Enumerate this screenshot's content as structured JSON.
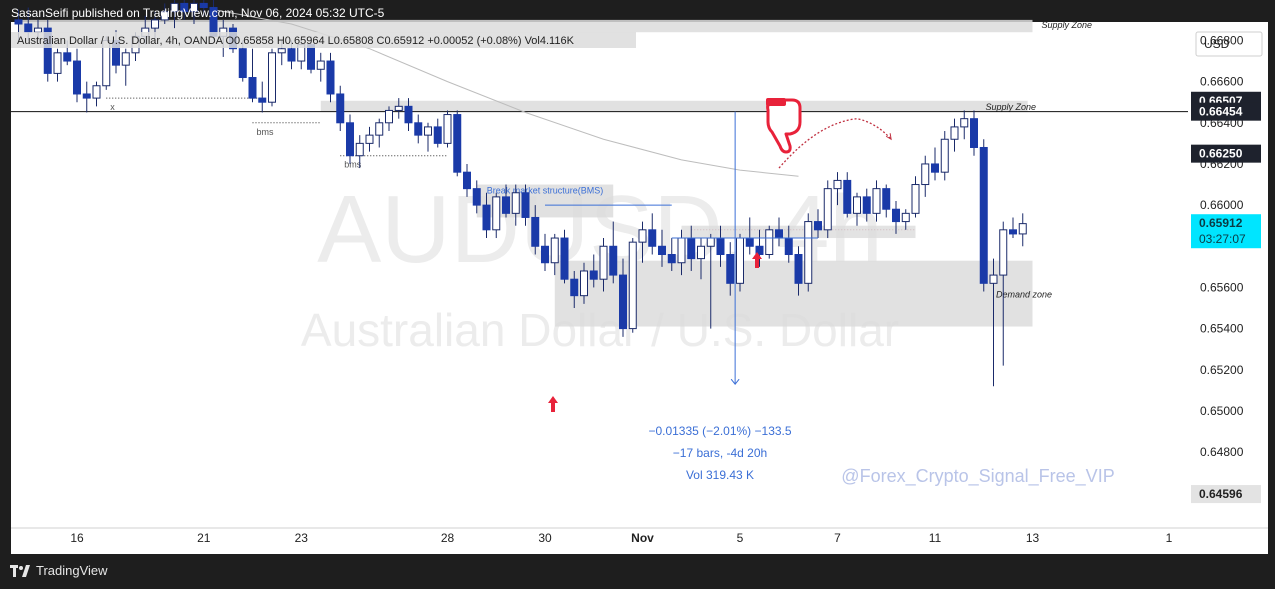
{
  "header": {
    "published": "SasanSeifi published on TradingView.com, Nov 06, 2024 05:32 UTC-5"
  },
  "footer": {
    "brand": "TradingView"
  },
  "colors": {
    "bull_body": "#ffffff",
    "bear_body": "#1a3aa8",
    "wick": "#1a2a6a",
    "zone_fill": "#dcdcdc",
    "measure_blue": "#3b6fd6",
    "arrow_red": "#e8223a",
    "watermark": "#ececec",
    "current_price_bg": "#00e5ff"
  },
  "chart_data": {
    "type": "candlestick",
    "symbol_line": {
      "name": "Australian Dollar / U.S. Dollar, 4h, OANDA",
      "open": "O0.65858",
      "high": "H0.65964",
      "low": "L0.65808",
      "close": "C0.65912",
      "change": "+0.00052 (+0.08%)",
      "volume": "Vol4.116K"
    },
    "watermark": {
      "symbol": "AUDUSD, 4h",
      "name": "Australian Dollar / U.S. Dollar"
    },
    "currency": "USD",
    "ylim": [
      0.6447,
      0.6688
    ],
    "y_ticks": [
      "0.66800",
      "0.66600",
      "0.66400",
      "0.66200",
      "0.66000",
      "0.65600",
      "0.65400",
      "0.65200",
      "0.65000",
      "0.64800"
    ],
    "price_labels": [
      {
        "value": 0.66507,
        "text": "0.66507",
        "style": "dark"
      },
      {
        "value": 0.66454,
        "text": "0.66454",
        "style": "dark"
      },
      {
        "value": 0.6625,
        "text": "0.66250",
        "style": "dark"
      },
      {
        "value": 0.65912,
        "text": "0.65912",
        "sub": "03:27:07",
        "style": "current"
      },
      {
        "value": 0.64596,
        "text": "0.64596",
        "style": "light"
      }
    ],
    "x_ticks": [
      {
        "label": "16",
        "bar": 6
      },
      {
        "label": "21",
        "bar": 19
      },
      {
        "label": "23",
        "bar": 29
      },
      {
        "label": "28",
        "bar": 44
      },
      {
        "label": "30",
        "bar": 54
      },
      {
        "label": "Nov",
        "bar": 64
      },
      {
        "label": "5",
        "bar": 74
      },
      {
        "label": "7",
        "bar": 84
      },
      {
        "label": "11",
        "bar": 94
      },
      {
        "label": "13",
        "bar": 104
      },
      {
        "label": "1",
        "bar": 118
      }
    ],
    "candles": [
      [
        0.669,
        0.6695,
        0.668,
        0.6688
      ],
      [
        0.6688,
        0.6696,
        0.668,
        0.6684
      ],
      [
        0.6684,
        0.669,
        0.668,
        0.6686
      ],
      [
        0.6686,
        0.669,
        0.666,
        0.6664
      ],
      [
        0.6664,
        0.6676,
        0.666,
        0.6674
      ],
      [
        0.6674,
        0.668,
        0.6668,
        0.667
      ],
      [
        0.667,
        0.6676,
        0.665,
        0.6654
      ],
      [
        0.6654,
        0.666,
        0.6645,
        0.6652
      ],
      [
        0.6652,
        0.666,
        0.6648,
        0.6658
      ],
      [
        0.6658,
        0.6682,
        0.6656,
        0.668
      ],
      [
        0.668,
        0.6685,
        0.6664,
        0.6668
      ],
      [
        0.6668,
        0.6676,
        0.6658,
        0.6674
      ],
      [
        0.6674,
        0.6684,
        0.667,
        0.6682
      ],
      [
        0.6682,
        0.6692,
        0.6678,
        0.6686
      ],
      [
        0.6686,
        0.6694,
        0.668,
        0.669
      ],
      [
        0.669,
        0.6698,
        0.6688,
        0.6694
      ],
      [
        0.6694,
        0.67,
        0.6686,
        0.6698
      ],
      [
        0.6698,
        0.6702,
        0.669,
        0.6694
      ],
      [
        0.6694,
        0.67,
        0.6688,
        0.6698
      ],
      [
        0.6698,
        0.6704,
        0.6692,
        0.6696
      ],
      [
        0.6696,
        0.67,
        0.668,
        0.6682
      ],
      [
        0.6682,
        0.669,
        0.6672,
        0.6686
      ],
      [
        0.6686,
        0.6688,
        0.6674,
        0.6676
      ],
      [
        0.6676,
        0.668,
        0.666,
        0.6662
      ],
      [
        0.6662,
        0.6676,
        0.665,
        0.6652
      ],
      [
        0.6652,
        0.666,
        0.6645,
        0.665
      ],
      [
        0.665,
        0.6676,
        0.6648,
        0.6674
      ],
      [
        0.6674,
        0.668,
        0.6668,
        0.6676
      ],
      [
        0.6676,
        0.668,
        0.6666,
        0.667
      ],
      [
        0.667,
        0.668,
        0.6666,
        0.6678
      ],
      [
        0.6678,
        0.6682,
        0.6664,
        0.6666
      ],
      [
        0.6666,
        0.6674,
        0.666,
        0.667
      ],
      [
        0.667,
        0.6674,
        0.665,
        0.6654
      ],
      [
        0.6654,
        0.6658,
        0.6636,
        0.664
      ],
      [
        0.664,
        0.6644,
        0.662,
        0.6624
      ],
      [
        0.6624,
        0.6634,
        0.6618,
        0.663
      ],
      [
        0.663,
        0.6638,
        0.6626,
        0.6634
      ],
      [
        0.6634,
        0.6642,
        0.6628,
        0.664
      ],
      [
        0.664,
        0.6648,
        0.6636,
        0.6646
      ],
      [
        0.6646,
        0.6652,
        0.6642,
        0.6648
      ],
      [
        0.6648,
        0.6652,
        0.6636,
        0.664
      ],
      [
        0.664,
        0.6644,
        0.663,
        0.6634
      ],
      [
        0.6634,
        0.664,
        0.6626,
        0.6638
      ],
      [
        0.6638,
        0.6642,
        0.6628,
        0.663
      ],
      [
        0.663,
        0.6646,
        0.6628,
        0.6644
      ],
      [
        0.6644,
        0.6646,
        0.6614,
        0.6616
      ],
      [
        0.6616,
        0.662,
        0.6604,
        0.6608
      ],
      [
        0.6608,
        0.6612,
        0.6596,
        0.66
      ],
      [
        0.66,
        0.6606,
        0.6584,
        0.6588
      ],
      [
        0.6588,
        0.6606,
        0.6584,
        0.6604
      ],
      [
        0.6604,
        0.661,
        0.6594,
        0.6596
      ],
      [
        0.6596,
        0.661,
        0.659,
        0.6606
      ],
      [
        0.6606,
        0.661,
        0.659,
        0.6594
      ],
      [
        0.6594,
        0.66,
        0.6576,
        0.658
      ],
      [
        0.658,
        0.6586,
        0.6568,
        0.6572
      ],
      [
        0.6572,
        0.6586,
        0.6566,
        0.6584
      ],
      [
        0.6584,
        0.6588,
        0.6562,
        0.6564
      ],
      [
        0.6564,
        0.6568,
        0.655,
        0.6556
      ],
      [
        0.6556,
        0.6572,
        0.6552,
        0.6568
      ],
      [
        0.6568,
        0.6576,
        0.656,
        0.6564
      ],
      [
        0.6564,
        0.6584,
        0.6558,
        0.658
      ],
      [
        0.658,
        0.6592,
        0.6562,
        0.6566
      ],
      [
        0.6566,
        0.6574,
        0.6536,
        0.654
      ],
      [
        0.654,
        0.6584,
        0.6538,
        0.6582
      ],
      [
        0.6582,
        0.6592,
        0.6572,
        0.6588
      ],
      [
        0.6588,
        0.6596,
        0.6576,
        0.658
      ],
      [
        0.658,
        0.6588,
        0.657,
        0.6576
      ],
      [
        0.6576,
        0.6584,
        0.6568,
        0.6572
      ],
      [
        0.6572,
        0.6588,
        0.6566,
        0.6584
      ],
      [
        0.6584,
        0.659,
        0.6568,
        0.6574
      ],
      [
        0.6574,
        0.6584,
        0.6564,
        0.658
      ],
      [
        0.658,
        0.6586,
        0.654,
        0.6584
      ],
      [
        0.6584,
        0.659,
        0.657,
        0.6576
      ],
      [
        0.6576,
        0.6582,
        0.6556,
        0.6562
      ],
      [
        0.6562,
        0.6586,
        0.6558,
        0.6584
      ]
    ],
    "candles_b": [
      [
        0.6584,
        0.6594,
        0.6576,
        0.658
      ],
      [
        0.658,
        0.6588,
        0.657,
        0.6576
      ],
      [
        0.6576,
        0.659,
        0.6574,
        0.6588
      ],
      [
        0.6588,
        0.6594,
        0.658,
        0.6584
      ],
      [
        0.6584,
        0.659,
        0.6572,
        0.6576
      ],
      [
        0.6576,
        0.658,
        0.6556,
        0.6562
      ],
      [
        0.6562,
        0.6596,
        0.6558,
        0.6592
      ],
      [
        0.6592,
        0.6598,
        0.6584,
        0.6588
      ],
      [
        0.6588,
        0.6612,
        0.6584,
        0.6608
      ],
      [
        0.6608,
        0.6616,
        0.66,
        0.6612
      ],
      [
        0.6612,
        0.6616,
        0.6594,
        0.6596
      ],
      [
        0.6596,
        0.6606,
        0.659,
        0.6604
      ],
      [
        0.6604,
        0.6608,
        0.6592,
        0.6596
      ],
      [
        0.6596,
        0.6612,
        0.6592,
        0.6608
      ],
      [
        0.6608,
        0.661,
        0.6594,
        0.6598
      ],
      [
        0.6598,
        0.6602,
        0.6586,
        0.6592
      ],
      [
        0.6592,
        0.6598,
        0.6588,
        0.6596
      ],
      [
        0.6596,
        0.6614,
        0.6594,
        0.661
      ],
      [
        0.661,
        0.6624,
        0.6604,
        0.662
      ],
      [
        0.662,
        0.6628,
        0.6612,
        0.6616
      ],
      [
        0.6616,
        0.6636,
        0.6612,
        0.6632
      ],
      [
        0.6632,
        0.6642,
        0.6626,
        0.6638
      ],
      [
        0.6638,
        0.6646,
        0.6632,
        0.6642
      ],
      [
        0.6642,
        0.6646,
        0.6624,
        0.6628
      ],
      [
        0.6628,
        0.6632,
        0.6558,
        0.6562
      ],
      [
        0.6562,
        0.6574,
        0.6512,
        0.6566
      ],
      [
        0.6566,
        0.6592,
        0.6522,
        0.6588
      ],
      [
        0.6588,
        0.6594,
        0.6584,
        0.6586
      ],
      [
        0.6586,
        0.6596,
        0.658,
        0.6591
      ]
    ],
    "moving_average": [
      [
        20,
        0.6695
      ],
      [
        28,
        0.6688
      ],
      [
        36,
        0.6676
      ],
      [
        44,
        0.666
      ],
      [
        52,
        0.6645
      ],
      [
        60,
        0.6632
      ],
      [
        68,
        0.6622
      ],
      [
        74,
        0.6617
      ],
      [
        80,
        0.6614
      ]
    ],
    "zones": [
      {
        "label": "Supply Zone",
        "y1": 0.6684,
        "y2": 0.669,
        "x1_bar": 0,
        "x2_bar": 104
      },
      {
        "label": "Supply Zone",
        "y1": 0.66454,
        "y2": 0.66507,
        "x1_bar": 31,
        "x2_bar": 103.5
      },
      {
        "label": "Demand zone",
        "y1": 0.6541,
        "y2": 0.6573,
        "x1_bar": 55,
        "x2_bar": 104
      },
      {
        "label": "Break market structure(BMS)",
        "y1": 0.6594,
        "y2": 0.661,
        "x1_bar": 47,
        "x2_bar": 61
      }
    ],
    "bms_markers": [
      {
        "label": "x",
        "bar_from": 9,
        "bar_to": 25,
        "price": 0.6652
      },
      {
        "label": "bms",
        "bar_from": 24,
        "bar_to": 31,
        "price": 0.664
      },
      {
        "label": "bms",
        "bar_from": 33,
        "bar_to": 44,
        "price": 0.6624
      }
    ],
    "measure": {
      "line1": "−0.01335 (−2.01%) −133.5",
      "line2": "−17 bars, -4d 20h",
      "line3": "Vol 319.43 K"
    },
    "signature": "@Forex_Crypto_Signal_Free_VIP"
  }
}
